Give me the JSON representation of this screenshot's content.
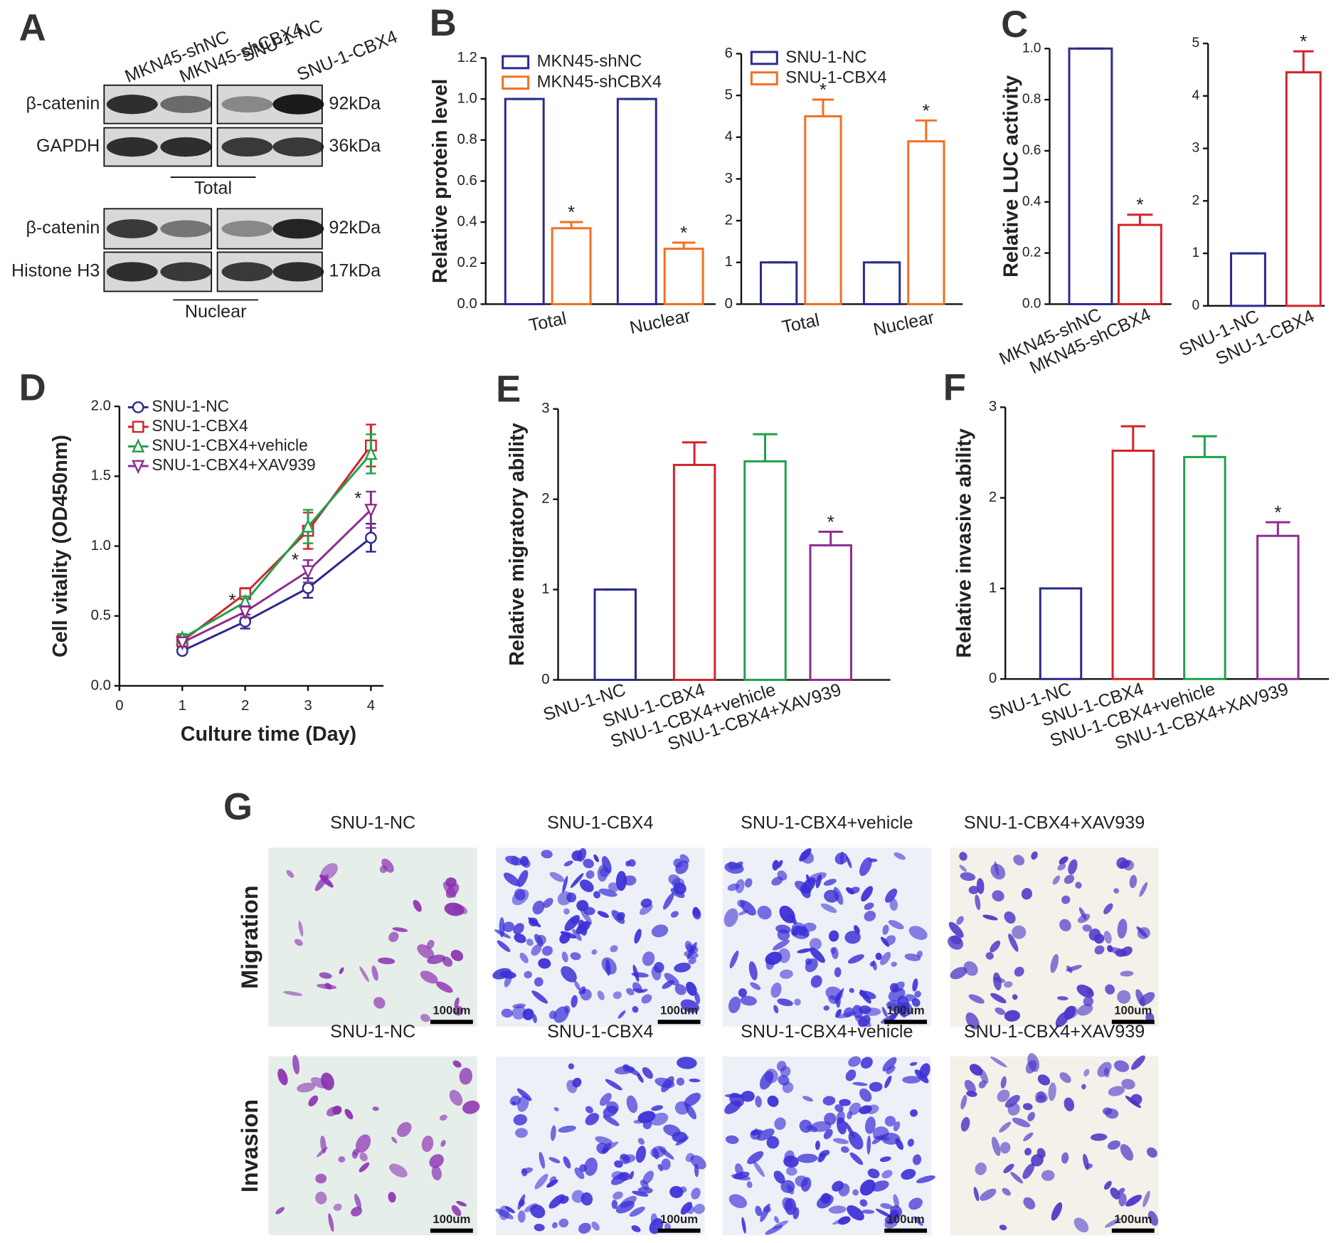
{
  "panels": [
    "A",
    "B",
    "C",
    "D",
    "E",
    "F",
    "G"
  ],
  "western_blot": {
    "lanes": [
      "MKN45-shNC",
      "MKN45-shCBX4",
      "SNU-1-NC",
      "SNU-1-CBX4"
    ],
    "rows": [
      {
        "protein": "β-catenin",
        "size": "92kDa"
      },
      {
        "protein": "GAPDH",
        "size": "36kDa"
      },
      {
        "protein": "β-catenin",
        "size": "92kDa"
      },
      {
        "protein": "Histone H3",
        "size": "17kDa"
      }
    ],
    "groups": [
      "Total",
      "Nuclear"
    ]
  },
  "chart_data": [
    {
      "type": "bar",
      "ylabel": "Relative protein level",
      "categories": [
        "Total",
        "Nuclear"
      ],
      "series": [
        {
          "name": "MKN45-shNC",
          "color": "#2b2a8c",
          "values": [
            1,
            1
          ],
          "errors": [
            0,
            0
          ]
        },
        {
          "name": "MKN45-shCBX4",
          "color": "#f36f21",
          "values": [
            0.37,
            0.27
          ],
          "errors": [
            0.03,
            0.03
          ],
          "significance": [
            "*",
            "*"
          ]
        }
      ],
      "ylim": [
        0,
        1.2
      ],
      "yticks": [
        {
          "value": 0,
          "label": "0.0"
        },
        0.2,
        0.4,
        0.6,
        0.8,
        {
          "value": 1,
          "label": "1.0"
        },
        1.2
      ]
    },
    {
      "type": "bar",
      "categories": [
        "Total",
        "Nuclear"
      ],
      "series": [
        {
          "name": "SNU-1-NC",
          "color": "#2b2a8c",
          "values": [
            1,
            1
          ],
          "errors": [
            0,
            0
          ]
        },
        {
          "name": "SNU-1-CBX4",
          "color": "#f36f21",
          "values": [
            4.5,
            3.9
          ],
          "errors": [
            0.4,
            0.5
          ],
          "significance": [
            "*",
            "*"
          ]
        }
      ],
      "ylim": [
        0,
        6
      ],
      "yticks": [
        0,
        1,
        2,
        3,
        4,
        5,
        6
      ]
    },
    {
      "type": "bar",
      "ylabel": "Relative LUC activity",
      "categories": [
        "MKN45-shNC",
        "MKN45-shCBX4"
      ],
      "colors": [
        "#2b2a8c",
        "#d2232a"
      ],
      "values": [
        1,
        0.31
      ],
      "errors": [
        0,
        0.04
      ],
      "significance": [
        null,
        "*"
      ],
      "ylim": [
        0,
        1
      ],
      "yticks": [
        {
          "value": 0,
          "label": "0.0"
        },
        0.2,
        0.4,
        0.6,
        0.8,
        {
          "value": 1,
          "label": "1.0"
        }
      ]
    },
    {
      "type": "bar",
      "categories": [
        "SNU-1-NC",
        "SNU-1-CBX4"
      ],
      "colors": [
        "#2b2a8c",
        "#d2232a"
      ],
      "values": [
        1,
        4.45
      ],
      "errors": [
        0,
        0.4
      ],
      "significance": [
        null,
        "*"
      ],
      "ylim": [
        0,
        5
      ],
      "yticks": [
        0,
        1,
        2,
        3,
        4,
        5
      ]
    },
    {
      "type": "line",
      "xlabel": "Culture time (Day)",
      "ylabel": "Cell vitality (OD450nm)",
      "x": [
        1,
        2,
        3,
        4
      ],
      "series": [
        {
          "name": "SNU-1-NC",
          "color": "#2b2a8c",
          "marker": "circle",
          "values": [
            0.25,
            0.46,
            0.7,
            1.06
          ],
          "errors": [
            0.02,
            0.05,
            0.07,
            0.1
          ]
        },
        {
          "name": "SNU-1-CBX4",
          "color": "#d2232a",
          "marker": "square",
          "values": [
            0.32,
            0.66,
            1.11,
            1.72
          ],
          "errors": [
            0.03,
            0.04,
            0.13,
            0.15
          ]
        },
        {
          "name": "SNU-1-CBX4+vehicle",
          "color": "#1fa24a",
          "marker": "triangle-up",
          "values": [
            0.34,
            0.6,
            1.14,
            1.66
          ],
          "errors": [
            0.03,
            0.04,
            0.12,
            0.14
          ]
        },
        {
          "name": "SNU-1-CBX4+XAV939",
          "color": "#8e2c8e",
          "marker": "triangle-down",
          "values": [
            0.31,
            0.53,
            0.82,
            1.26
          ],
          "errors": [
            0.03,
            0.04,
            0.08,
            0.13
          ],
          "significance": [
            null,
            "*",
            "*",
            "*"
          ]
        }
      ],
      "xlim": [
        0,
        4.2
      ],
      "xticks": [
        0,
        1,
        2,
        3,
        4
      ],
      "ylim": [
        0,
        2
      ],
      "yticks": [
        {
          "value": 0,
          "label": "0.0"
        },
        0.5,
        {
          "value": 1,
          "label": "1.0"
        },
        1.5,
        {
          "value": 2,
          "label": "2.0"
        }
      ]
    },
    {
      "type": "bar",
      "ylabel": "Relative migratory ability",
      "categories": [
        "SNU-1-NC",
        "SNU-1-CBX4",
        "SNU-1-CBX4+vehicle",
        "SNU-1-CBX4+XAV939"
      ],
      "colors": [
        "#2b2a8c",
        "#d2232a",
        "#1fa24a",
        "#8e2c8e"
      ],
      "values": [
        1,
        2.38,
        2.42,
        1.49
      ],
      "errors": [
        0,
        0.25,
        0.3,
        0.15
      ],
      "significance": [
        null,
        null,
        null,
        "*"
      ],
      "ylim": [
        0,
        3
      ],
      "yticks": [
        0,
        1,
        2,
        3
      ]
    },
    {
      "type": "bar",
      "ylabel": "Relative invasive ability",
      "categories": [
        "SNU-1-NC",
        "SNU-1-CBX4",
        "SNU-1-CBX4+vehicle",
        "SNU-1-CBX4+XAV939"
      ],
      "colors": [
        "#2b2a8c",
        "#d2232a",
        "#1fa24a",
        "#8e2c8e"
      ],
      "values": [
        1,
        2.52,
        2.45,
        1.58
      ],
      "errors": [
        0,
        0.27,
        0.23,
        0.15
      ],
      "significance": [
        null,
        null,
        null,
        "*"
      ],
      "ylim": [
        0,
        3
      ],
      "yticks": [
        0,
        1,
        2,
        3
      ]
    }
  ],
  "micrographs": {
    "columns": [
      "SNU-1-NC",
      "SNU-1-CBX4",
      "SNU-1-CBX4+vehicle",
      "SNU-1-CBX4+XAV939"
    ],
    "rows": [
      "Migration",
      "Invasion"
    ],
    "scale_bar": "100um"
  }
}
